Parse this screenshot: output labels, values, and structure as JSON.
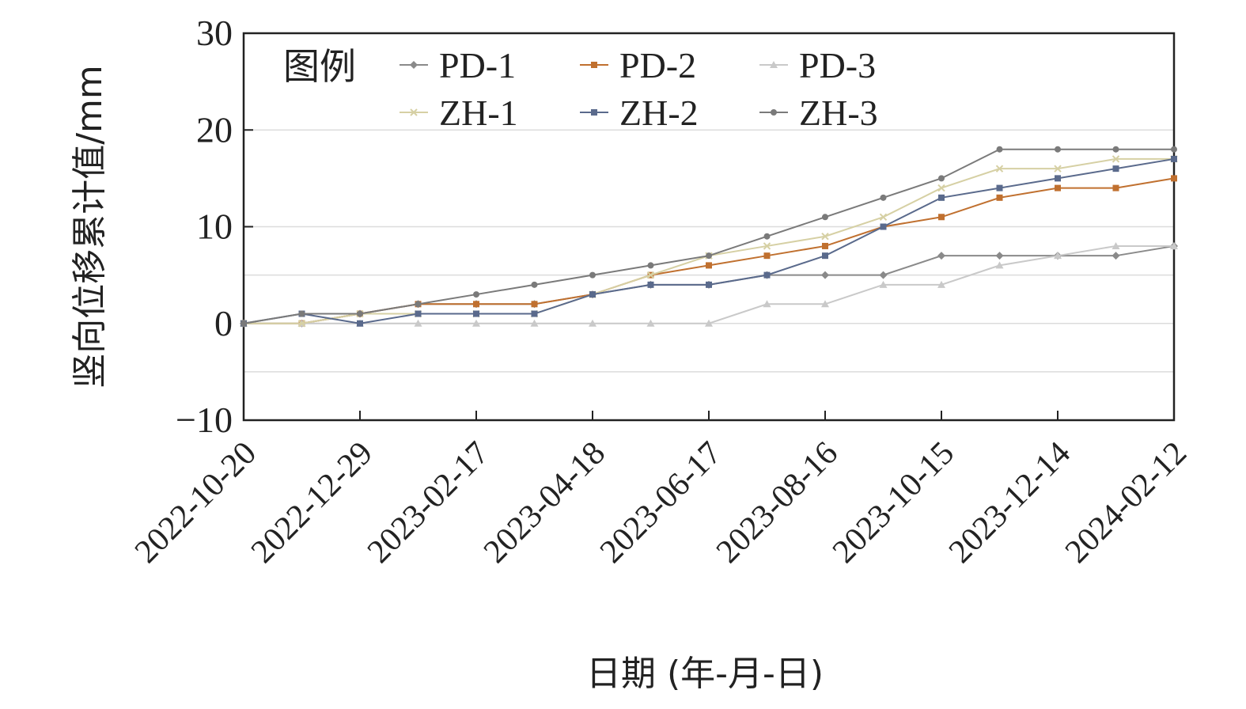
{
  "chart_data": {
    "type": "line",
    "xlabel": "日期 (年-月-日)",
    "ylabel": "竖向位移累计值/mm",
    "ylim": [
      -10,
      30
    ],
    "yticks": [
      -10,
      0,
      10,
      20,
      30
    ],
    "ytick_labels": [
      "−10",
      "0",
      "10",
      "20",
      "30"
    ],
    "gridlines_y": [
      -5,
      0,
      5,
      10,
      20
    ],
    "x": [
      "2022-10-20",
      "2022-11-24",
      "2022-12-29",
      "2023-01-23",
      "2023-02-17",
      "2023-03-19",
      "2023-04-18",
      "2023-05-18",
      "2023-06-17",
      "2023-07-17",
      "2023-08-16",
      "2023-09-15",
      "2023-10-15",
      "2023-11-14",
      "2023-12-14",
      "2024-01-13",
      "2024-02-12"
    ],
    "x_tick_labels": [
      "2022-10-20",
      "2022-12-29",
      "2023-02-17",
      "2023-04-18",
      "2023-06-17",
      "2023-08-16",
      "2023-10-15",
      "2023-12-14",
      "2024-02-12"
    ],
    "legend_title": "图例",
    "legend_position": "top-left",
    "series": [
      {
        "name": "PD-1",
        "color": "#8a8a8a",
        "marker": "diamond",
        "values": [
          0,
          0,
          1,
          2,
          2,
          2,
          3,
          4,
          4,
          5,
          5,
          5,
          7,
          7,
          7,
          7,
          8
        ]
      },
      {
        "name": "PD-2",
        "color": "#c0702f",
        "marker": "square",
        "values": [
          0,
          0,
          1,
          2,
          2,
          2,
          3,
          5,
          6,
          7,
          8,
          10,
          11,
          13,
          14,
          14,
          15
        ]
      },
      {
        "name": "PD-3",
        "color": "#c9c9c9",
        "marker": "triangle",
        "values": [
          0,
          0,
          0,
          0,
          0,
          0,
          0,
          0,
          0,
          2,
          2,
          4,
          4,
          6,
          7,
          8,
          8
        ]
      },
      {
        "name": "ZH-1",
        "color": "#d6d0a4",
        "marker": "x",
        "values": [
          0,
          0,
          1,
          1,
          1,
          1,
          3,
          5,
          7,
          8,
          9,
          11,
          14,
          16,
          16,
          17,
          17
        ]
      },
      {
        "name": "ZH-2",
        "color": "#5a6a8c",
        "marker": "square",
        "values": [
          0,
          1,
          0,
          1,
          1,
          1,
          3,
          4,
          4,
          5,
          7,
          10,
          13,
          14,
          15,
          16,
          17
        ]
      },
      {
        "name": "ZH-3",
        "color": "#7a7a7a",
        "marker": "circle",
        "values": [
          0,
          1,
          1,
          2,
          3,
          4,
          5,
          6,
          7,
          9,
          11,
          13,
          15,
          18,
          18,
          18,
          18
        ]
      }
    ]
  }
}
